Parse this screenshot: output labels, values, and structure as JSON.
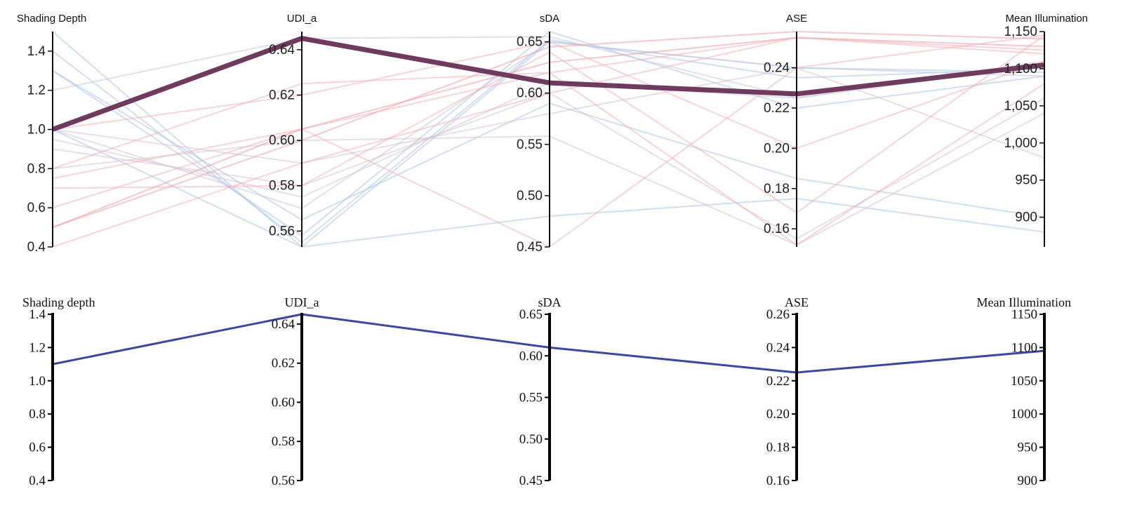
{
  "chart_data": [
    {
      "type": "parallel-coordinates",
      "axes": [
        {
          "name": "Shading Depth",
          "range": [
            0.4,
            1.5
          ],
          "ticks": [
            "0.4",
            "0.6",
            "0.8",
            "1.0",
            "1.2",
            "1.4"
          ]
        },
        {
          "name": "UDI_a",
          "range": [
            0.553,
            0.648
          ],
          "ticks": [
            "0.56",
            "0.58",
            "0.60",
            "0.62",
            "0.64"
          ]
        },
        {
          "name": "sDA",
          "range": [
            0.45,
            0.66
          ],
          "ticks": [
            "0.45",
            "0.50",
            "0.55",
            "0.60",
            "0.65"
          ]
        },
        {
          "name": "ASE",
          "range": [
            0.151,
            0.258
          ],
          "ticks": [
            "0.16",
            "0.18",
            "0.20",
            "0.22",
            "0.24"
          ]
        },
        {
          "name": "Mean Illumination",
          "range": [
            860,
            1150
          ],
          "ticks": [
            "900",
            "950",
            "1,000",
            "1,050",
            "1,100",
            "1,150"
          ]
        }
      ],
      "lines": [
        {
          "values": [
            1.0,
            0.645,
            0.61,
            0.227,
            1105
          ],
          "color": "#6e3a5e",
          "highlight": true
        },
        {
          "values": [
            1.5,
            0.553,
            0.65,
            0.24,
            1095
          ],
          "color": "#a9c4e6"
        },
        {
          "values": [
            1.4,
            0.555,
            0.652,
            0.235,
            1100
          ],
          "color": "#a9c4e6"
        },
        {
          "values": [
            1.3,
            0.558,
            0.66,
            0.22,
            1090
          ],
          "color": "#a9c4e6"
        },
        {
          "values": [
            1.3,
            0.565,
            0.59,
            0.185,
            900
          ],
          "color": "#a9c4e6"
        },
        {
          "values": [
            1.0,
            0.553,
            0.48,
            0.175,
            880
          ],
          "color": "#a9c4e6"
        },
        {
          "values": [
            1.2,
            0.645,
            0.655,
            0.225,
            1105
          ],
          "color": "#c5c8e0"
        },
        {
          "values": [
            1.0,
            0.57,
            0.65,
            0.24,
            1090
          ],
          "color": "#c5c8e0"
        },
        {
          "values": [
            0.9,
            0.58,
            0.6,
            0.155,
            1060
          ],
          "color": "#d6c3d6"
        },
        {
          "values": [
            0.8,
            0.6,
            0.558,
            0.152,
            1040
          ],
          "color": "#d6c3d6"
        },
        {
          "values": [
            1.0,
            0.59,
            0.58,
            0.24,
            980
          ],
          "color": "#d6c3d6"
        },
        {
          "values": [
            0.95,
            0.575,
            0.61,
            0.225,
            1110
          ],
          "color": "#d6c3d6"
        },
        {
          "values": [
            0.5,
            0.605,
            0.63,
            0.255,
            1130
          ],
          "color": "#e89ba3"
        },
        {
          "values": [
            0.5,
            0.6,
            0.645,
            0.258,
            1140
          ],
          "color": "#ef9ca5"
        },
        {
          "values": [
            0.6,
            0.605,
            0.62,
            0.255,
            1120
          ],
          "color": "#f2b0b7"
        },
        {
          "values": [
            0.4,
            0.59,
            0.6,
            0.255,
            1125
          ],
          "color": "#f2b0b7"
        },
        {
          "values": [
            0.7,
            0.58,
            0.64,
            0.168,
            1145
          ],
          "color": "#f2b0b7"
        },
        {
          "values": [
            0.8,
            0.625,
            0.62,
            0.152,
            1080
          ],
          "color": "#f2b0b7"
        },
        {
          "values": [
            0.75,
            0.605,
            0.45,
            0.24,
            1145
          ],
          "color": "#f2b0b7"
        },
        {
          "values": [
            1.0,
            0.62,
            0.65,
            0.2,
            1110
          ],
          "color": "#f2b0b7"
        }
      ]
    },
    {
      "type": "parallel-coordinates",
      "axes": [
        {
          "name": "Shading depth",
          "range": [
            0.4,
            1.4
          ],
          "ticks": [
            "0.4",
            "0.6",
            "0.8",
            "1.0",
            "1.2",
            "1.4"
          ]
        },
        {
          "name": "UDI_a",
          "range": [
            0.56,
            0.645
          ],
          "ticks": [
            "0.56",
            "0.58",
            "0.60",
            "0.62",
            "0.64"
          ]
        },
        {
          "name": "sDA",
          "range": [
            0.45,
            0.65
          ],
          "ticks": [
            "0.45",
            "0.50",
            "0.55",
            "0.60",
            "0.65"
          ]
        },
        {
          "name": "ASE",
          "range": [
            0.16,
            0.26
          ],
          "ticks": [
            "0.16",
            "0.18",
            "0.20",
            "0.22",
            "0.24",
            "0.26"
          ]
        },
        {
          "name": "Mean Illumination",
          "range": [
            900,
            1150
          ],
          "ticks": [
            "900",
            "950",
            "1000",
            "1050",
            "1100",
            "1150"
          ]
        }
      ],
      "lines": [
        {
          "values": [
            1.1,
            0.645,
            0.61,
            0.225,
            1095
          ],
          "color": "#3a48a0"
        }
      ]
    }
  ]
}
